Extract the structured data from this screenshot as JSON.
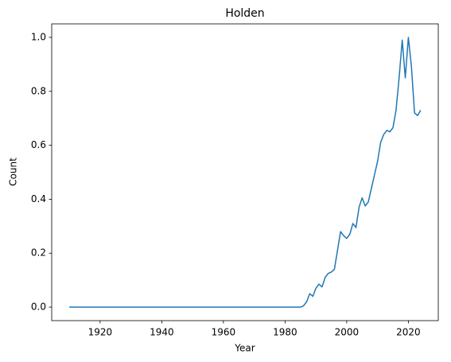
{
  "chart_data": {
    "type": "line",
    "title": "Holden",
    "x_label": "Year",
    "y_label": "Count",
    "color": "#1f77b4",
    "x": [
      1910,
      1911,
      1912,
      1913,
      1914,
      1915,
      1916,
      1917,
      1918,
      1919,
      1920,
      1921,
      1922,
      1923,
      1924,
      1925,
      1926,
      1927,
      1928,
      1929,
      1930,
      1931,
      1932,
      1933,
      1934,
      1935,
      1936,
      1937,
      1938,
      1939,
      1940,
      1941,
      1942,
      1943,
      1944,
      1945,
      1946,
      1947,
      1948,
      1949,
      1950,
      1951,
      1952,
      1953,
      1954,
      1955,
      1956,
      1957,
      1958,
      1959,
      1960,
      1961,
      1962,
      1963,
      1964,
      1965,
      1966,
      1967,
      1968,
      1969,
      1970,
      1971,
      1972,
      1973,
      1974,
      1975,
      1976,
      1977,
      1978,
      1979,
      1980,
      1981,
      1982,
      1983,
      1984,
      1985,
      1986,
      1987,
      1988,
      1989,
      1990,
      1991,
      1992,
      1993,
      1994,
      1995,
      1996,
      1997,
      1998,
      1999,
      2000,
      2001,
      2002,
      2003,
      2004,
      2005,
      2006,
      2007,
      2008,
      2009,
      2010,
      2011,
      2012,
      2013,
      2014,
      2015,
      2016,
      2017,
      2018,
      2019,
      2020,
      2021,
      2022,
      2023,
      2024
    ],
    "values": [
      0,
      0,
      0,
      0,
      0,
      0,
      0,
      0,
      0,
      0,
      0,
      0,
      0,
      0,
      0,
      0,
      0,
      0,
      0,
      0,
      0,
      0,
      0,
      0,
      0,
      0,
      0,
      0,
      0,
      0,
      0,
      0,
      0,
      0,
      0,
      0,
      0,
      0,
      0,
      0,
      0,
      0,
      0,
      0,
      0,
      0,
      0,
      0,
      0,
      0,
      0,
      0,
      0,
      0,
      0,
      0,
      0,
      0,
      0,
      0,
      0,
      0,
      0,
      0,
      0,
      0,
      0,
      0,
      0,
      0,
      0,
      0,
      0,
      0,
      0,
      0,
      0.005,
      0.02,
      0.05,
      0.04,
      0.07,
      0.085,
      0.075,
      0.11,
      0.125,
      0.13,
      0.14,
      0.21,
      0.28,
      0.265,
      0.255,
      0.27,
      0.31,
      0.295,
      0.37,
      0.405,
      0.375,
      0.39,
      0.44,
      0.49,
      0.54,
      0.61,
      0.64,
      0.655,
      0.65,
      0.665,
      0.73,
      0.85,
      0.99,
      0.85,
      1.0,
      0.89,
      0.72,
      0.71,
      0.73
    ],
    "xlim": [
      1904.3,
      2029.7
    ],
    "ylim": [
      -0.05,
      1.05
    ],
    "xticks": [
      1920,
      1940,
      1960,
      1980,
      2000,
      2020
    ],
    "yticks": [
      {
        "value": 0,
        "label": "0.0"
      },
      0.2,
      0.4,
      0.6,
      0.8,
      {
        "value": 1,
        "label": "1.0"
      }
    ]
  }
}
